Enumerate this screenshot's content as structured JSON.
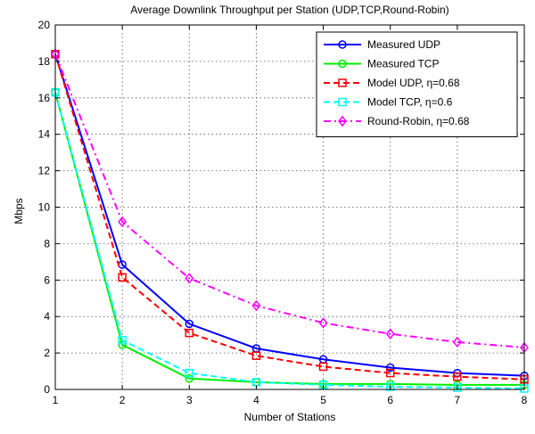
{
  "chart_data": {
    "type": "line",
    "title": "Average Downlink Throughput per Station (UDP,TCP,Round-Robin)",
    "xlabel": "Number of Stations",
    "ylabel": "Mbps",
    "xlim": [
      1,
      8
    ],
    "ylim": [
      0,
      20
    ],
    "xticks": [
      1,
      2,
      3,
      4,
      5,
      6,
      7,
      8
    ],
    "yticks": [
      0,
      2,
      4,
      6,
      8,
      10,
      12,
      14,
      16,
      18,
      20
    ],
    "grid": true,
    "legend_position": "top-right",
    "x": [
      1,
      2,
      3,
      4,
      5,
      6,
      7,
      8
    ],
    "series": [
      {
        "name": "Measured UDP",
        "color": "#0000ff",
        "dash": "solid",
        "marker": "circle",
        "values": [
          18.4,
          6.85,
          3.6,
          2.25,
          1.65,
          1.2,
          0.9,
          0.75
        ]
      },
      {
        "name": "Measured TCP",
        "color": "#00ee00",
        "dash": "solid",
        "marker": "circle",
        "values": [
          16.3,
          2.45,
          0.6,
          0.4,
          0.3,
          0.3,
          0.25,
          0.25
        ]
      },
      {
        "name": "Model UDP, η=0.68",
        "color": "#ff0000",
        "dash": "dashed",
        "marker": "square",
        "values": [
          18.4,
          6.15,
          3.1,
          1.85,
          1.25,
          0.9,
          0.7,
          0.55
        ]
      },
      {
        "name": "Model TCP, η=0.6",
        "color": "#00ffff",
        "dash": "dashed",
        "marker": "square",
        "values": [
          16.3,
          2.7,
          0.9,
          0.4,
          0.25,
          0.15,
          0.1,
          0.05
        ]
      },
      {
        "name": "Round-Robin, η=0.68",
        "color": "#ff00ff",
        "dash": "dashdot",
        "marker": "diamond",
        "values": [
          18.4,
          9.2,
          6.1,
          4.6,
          3.65,
          3.05,
          2.6,
          2.3
        ]
      }
    ]
  }
}
